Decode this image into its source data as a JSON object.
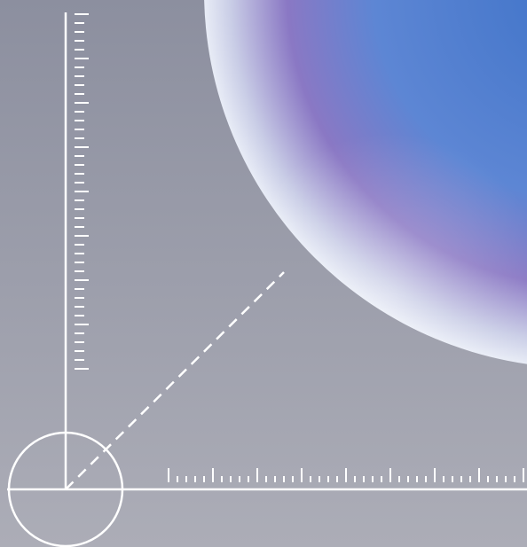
{
  "scene": {
    "background_top": "#8c8f9f",
    "background_bottom": "#acadb7",
    "line_color": "#ffffff",
    "sphere_colors": {
      "rim": "#e8ecf6",
      "violet": "#8a78c4",
      "blue": "#5d86d4",
      "deep_blue": "#3f73c8"
    },
    "vertical_ruler_ticks": 40,
    "horizontal_ruler_ticks": 41,
    "major_tick_every": 5
  }
}
